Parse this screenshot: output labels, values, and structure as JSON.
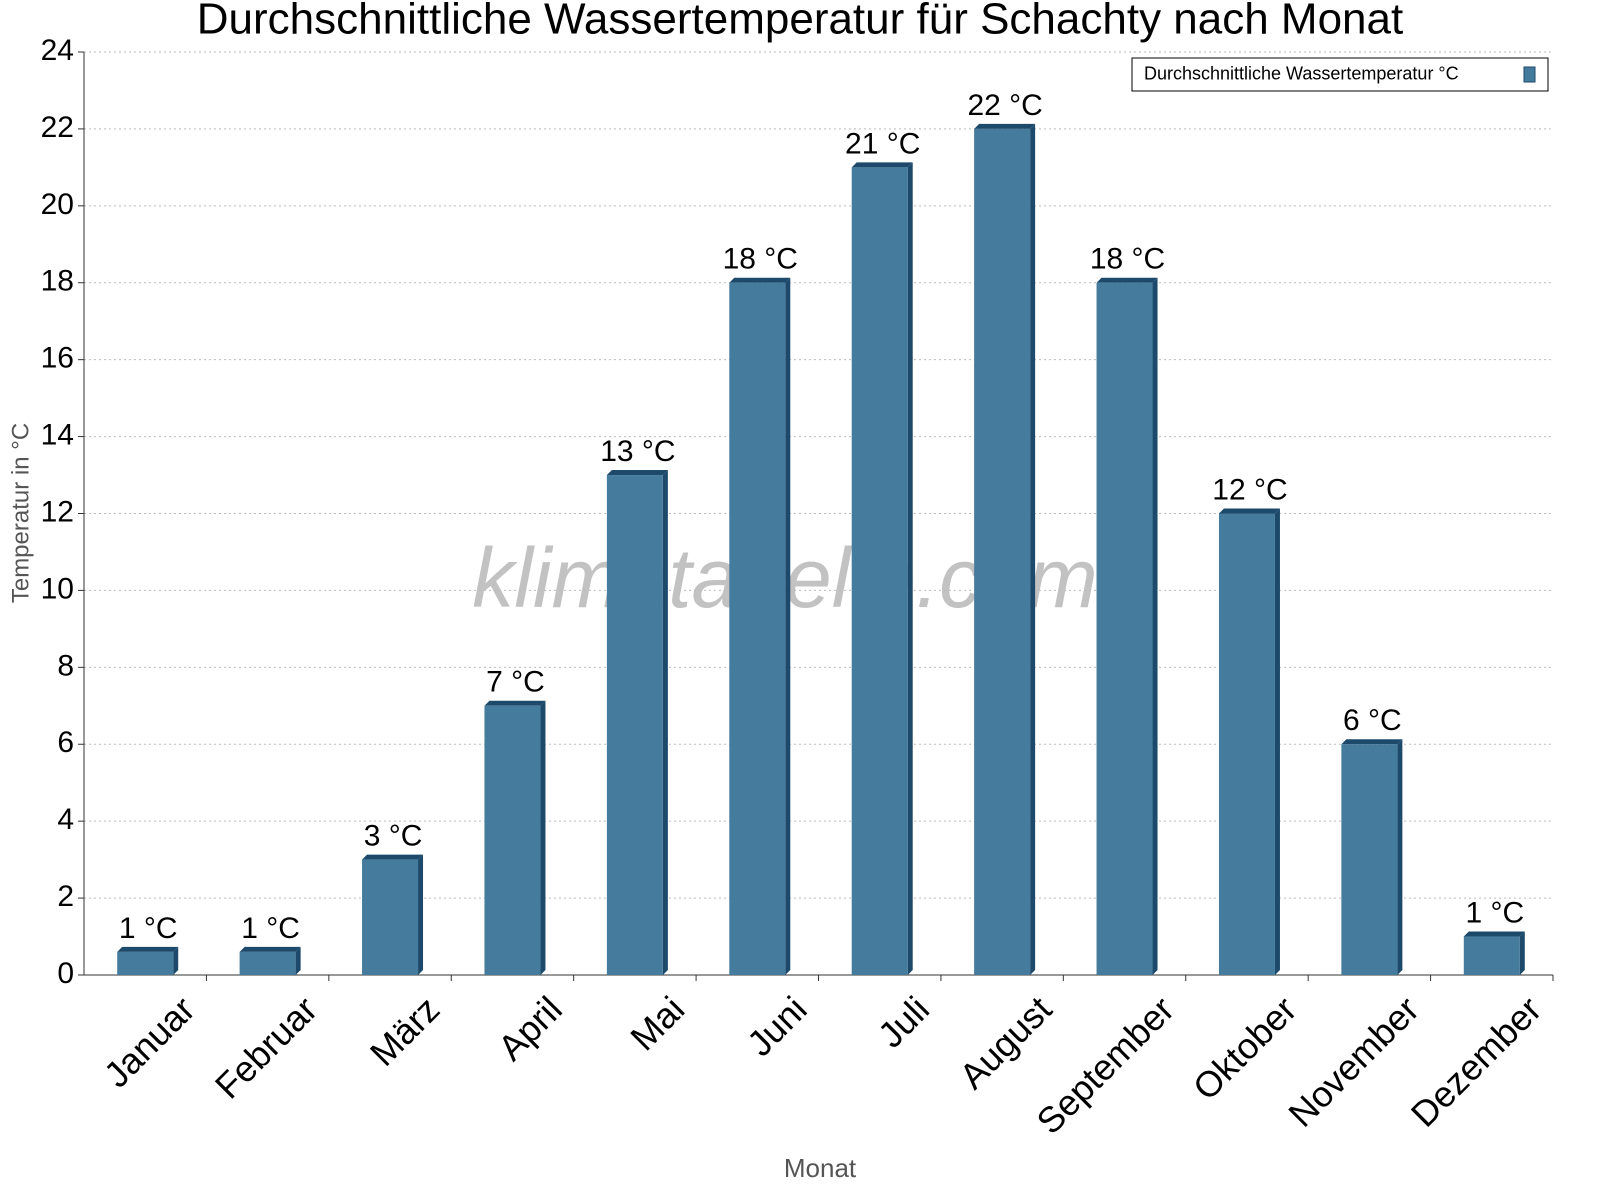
{
  "chart_data": {
    "type": "bar",
    "title": "Durchschnittliche Wassertemperatur für Schachty nach Monat",
    "x_label": "Monat",
    "y_label": "Temperatur in °C",
    "watermark": "klimatabelle.com",
    "categories": [
      "Januar",
      "Februar",
      "März",
      "April",
      "Mai",
      "Juni",
      "Juli",
      "August",
      "September",
      "Oktober",
      "November",
      "Dezember"
    ],
    "series": [
      {
        "name": "Durchschnittliche Wassertemperatur °C",
        "color": "#457b9d",
        "values": [
          0.6,
          0.6,
          3,
          7,
          13,
          18,
          21,
          22,
          18,
          12,
          6,
          1
        ],
        "value_labels": [
          "1 °C",
          "1 °C",
          "3 °C",
          "7 °C",
          "13 °C",
          "18 °C",
          "21 °C",
          "22 °C",
          "18 °C",
          "12 °C",
          "6 °C",
          "1 °C"
        ]
      }
    ],
    "ylim": [
      0,
      24
    ],
    "yticks": [
      0,
      2,
      4,
      6,
      8,
      10,
      12,
      14,
      16,
      18,
      20,
      22,
      24
    ],
    "grid": true,
    "legend": "top-right"
  }
}
